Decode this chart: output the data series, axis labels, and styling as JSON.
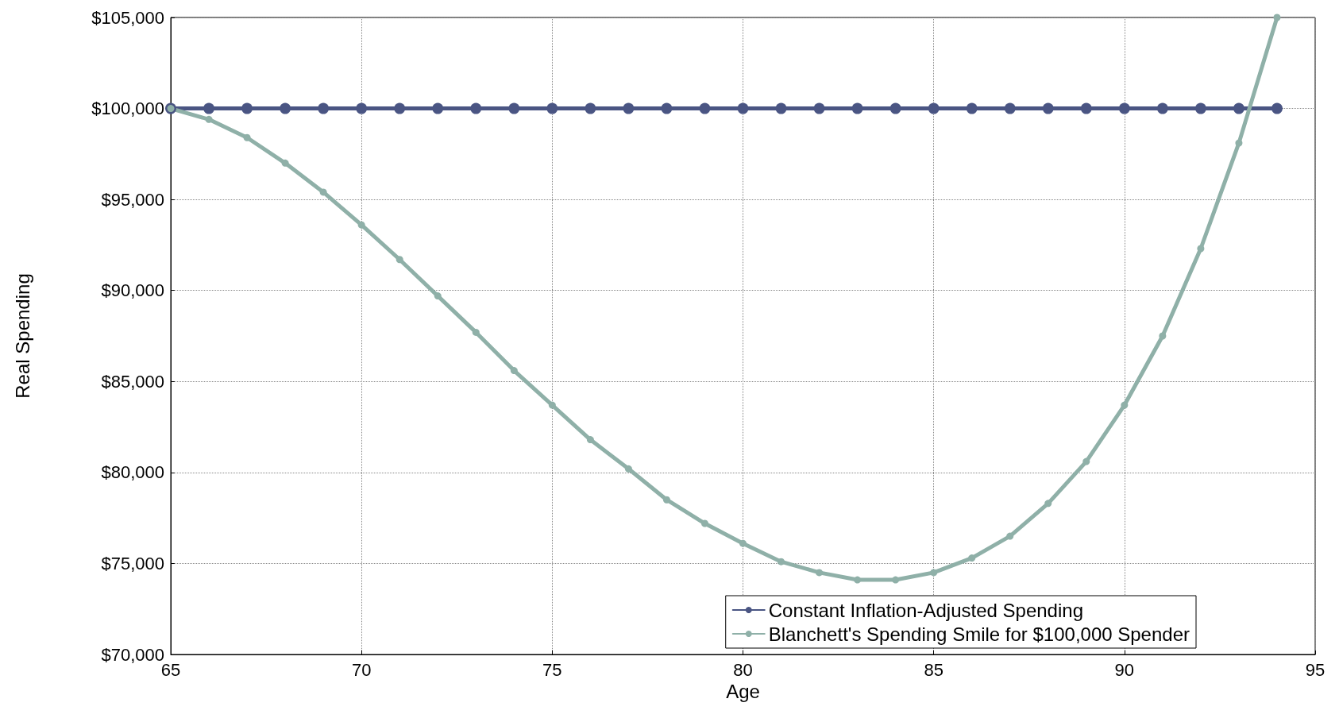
{
  "chart_data": {
    "type": "line",
    "xlabel": "Age",
    "ylabel": "Real Spending",
    "xlim": [
      65,
      95
    ],
    "xticks": [
      65,
      70,
      75,
      80,
      85,
      90,
      95
    ],
    "ylim": [
      70000,
      105000
    ],
    "yticks": [
      {
        "value": 70000,
        "label": "$70,000"
      },
      {
        "value": 75000,
        "label": "$75,000"
      },
      {
        "value": 80000,
        "label": "$80,000"
      },
      {
        "value": 85000,
        "label": "$85,000"
      },
      {
        "value": 90000,
        "label": "$90,000"
      },
      {
        "value": 95000,
        "label": "$95,000"
      },
      {
        "value": 100000,
        "label": "$100,000"
      },
      {
        "value": 105000,
        "label": "$105,000"
      }
    ],
    "x": [
      65,
      66,
      67,
      68,
      69,
      70,
      71,
      72,
      73,
      74,
      75,
      76,
      77,
      78,
      79,
      80,
      81,
      82,
      83,
      84,
      85,
      86,
      87,
      88,
      89,
      90,
      91,
      92,
      93,
      94
    ],
    "series": [
      {
        "name": "Constant Inflation-Adjusted Spending",
        "color": "#4a5583",
        "values": [
          100000,
          100000,
          100000,
          100000,
          100000,
          100000,
          100000,
          100000,
          100000,
          100000,
          100000,
          100000,
          100000,
          100000,
          100000,
          100000,
          100000,
          100000,
          100000,
          100000,
          100000,
          100000,
          100000,
          100000,
          100000,
          100000,
          100000,
          100000,
          100000,
          100000
        ]
      },
      {
        "name": "Blanchett's Spending Smile for $100,000 Spender",
        "color": "#8fb0a8",
        "values": [
          100000,
          99400,
          98400,
          97000,
          95400,
          93600,
          91700,
          89700,
          87700,
          85600,
          83700,
          81800,
          80200,
          78500,
          77200,
          76100,
          75100,
          74500,
          74100,
          74100,
          74500,
          75300,
          76500,
          78300,
          80600,
          83700,
          87500,
          92300,
          98100,
          105000
        ]
      }
    ],
    "grid": true,
    "legend": "bottom right",
    "marker": "circle",
    "line_style": "solid"
  }
}
